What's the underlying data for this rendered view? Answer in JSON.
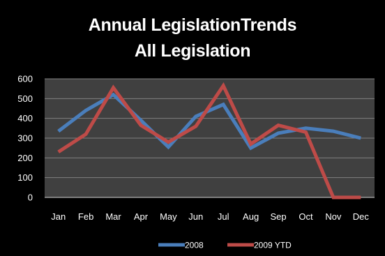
{
  "chart_data": {
    "type": "line",
    "title_lines": [
      "Annual LegislationTrends",
      "All Legislation"
    ],
    "categories": [
      "Jan",
      "Feb",
      "Mar",
      "Apr",
      "May",
      "Jun",
      "Jul",
      "Aug",
      "Sep",
      "Oct",
      "Nov",
      "Dec"
    ],
    "series": [
      {
        "name": "2008",
        "color": "#4a7ebb",
        "values": [
          335,
          440,
          520,
          390,
          255,
          410,
          470,
          250,
          325,
          350,
          335,
          300
        ]
      },
      {
        "name": "2009 YTD",
        "color": "#be4b48",
        "values": [
          230,
          320,
          555,
          365,
          280,
          360,
          565,
          270,
          365,
          330,
          0,
          0
        ]
      }
    ],
    "ylim": [
      0,
      600
    ],
    "yticks": [
      0,
      100,
      200,
      300,
      400,
      500,
      600
    ],
    "grid": true,
    "legend_position": "bottom",
    "background": "#000000",
    "plot_background": "#404040",
    "gridline_color": "#808080"
  }
}
